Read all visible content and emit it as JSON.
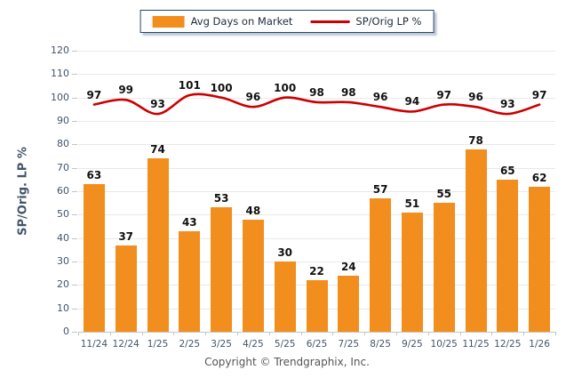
{
  "legend": {
    "bar_label": "Avg Days on Market",
    "line_label": "SP/Orig LP %"
  },
  "footer": {
    "text": "Copyright © Trendgraphix, Inc."
  },
  "colors": {
    "bar": "#F18E1D",
    "line": "#CC0000",
    "axis_text": "#44546A",
    "data_label": "#111111",
    "grid": "#E9E9E9",
    "axis_line": "#C6C6C6",
    "legend_border": "#24466E"
  },
  "chart_data": {
    "type": "bar",
    "subtype": "bar+line combo",
    "categories": [
      "11/24",
      "12/24",
      "1/25",
      "2/25",
      "3/25",
      "4/25",
      "5/25",
      "6/25",
      "7/25",
      "8/25",
      "9/25",
      "10/25",
      "11/25",
      "12/25",
      "1/26"
    ],
    "series": [
      {
        "name": "Avg Days on Market",
        "type": "bar",
        "values": [
          63,
          37,
          74,
          43,
          53,
          48,
          30,
          22,
          24,
          57,
          51,
          55,
          78,
          65,
          62
        ]
      },
      {
        "name": "SP/Orig LP %",
        "type": "line",
        "values": [
          97,
          99,
          93,
          101,
          100,
          96,
          100,
          98,
          98,
          96,
          94,
          97,
          96,
          93,
          97
        ]
      }
    ],
    "title": "",
    "xlabel": "",
    "ylabel": "SP/Orig. LP %",
    "ylim": [
      0,
      120
    ],
    "yticks": [
      0,
      10,
      20,
      30,
      40,
      50,
      60,
      70,
      80,
      90,
      100,
      110,
      120
    ],
    "grid": true,
    "legend_position": "top-center",
    "data_labels": true
  }
}
